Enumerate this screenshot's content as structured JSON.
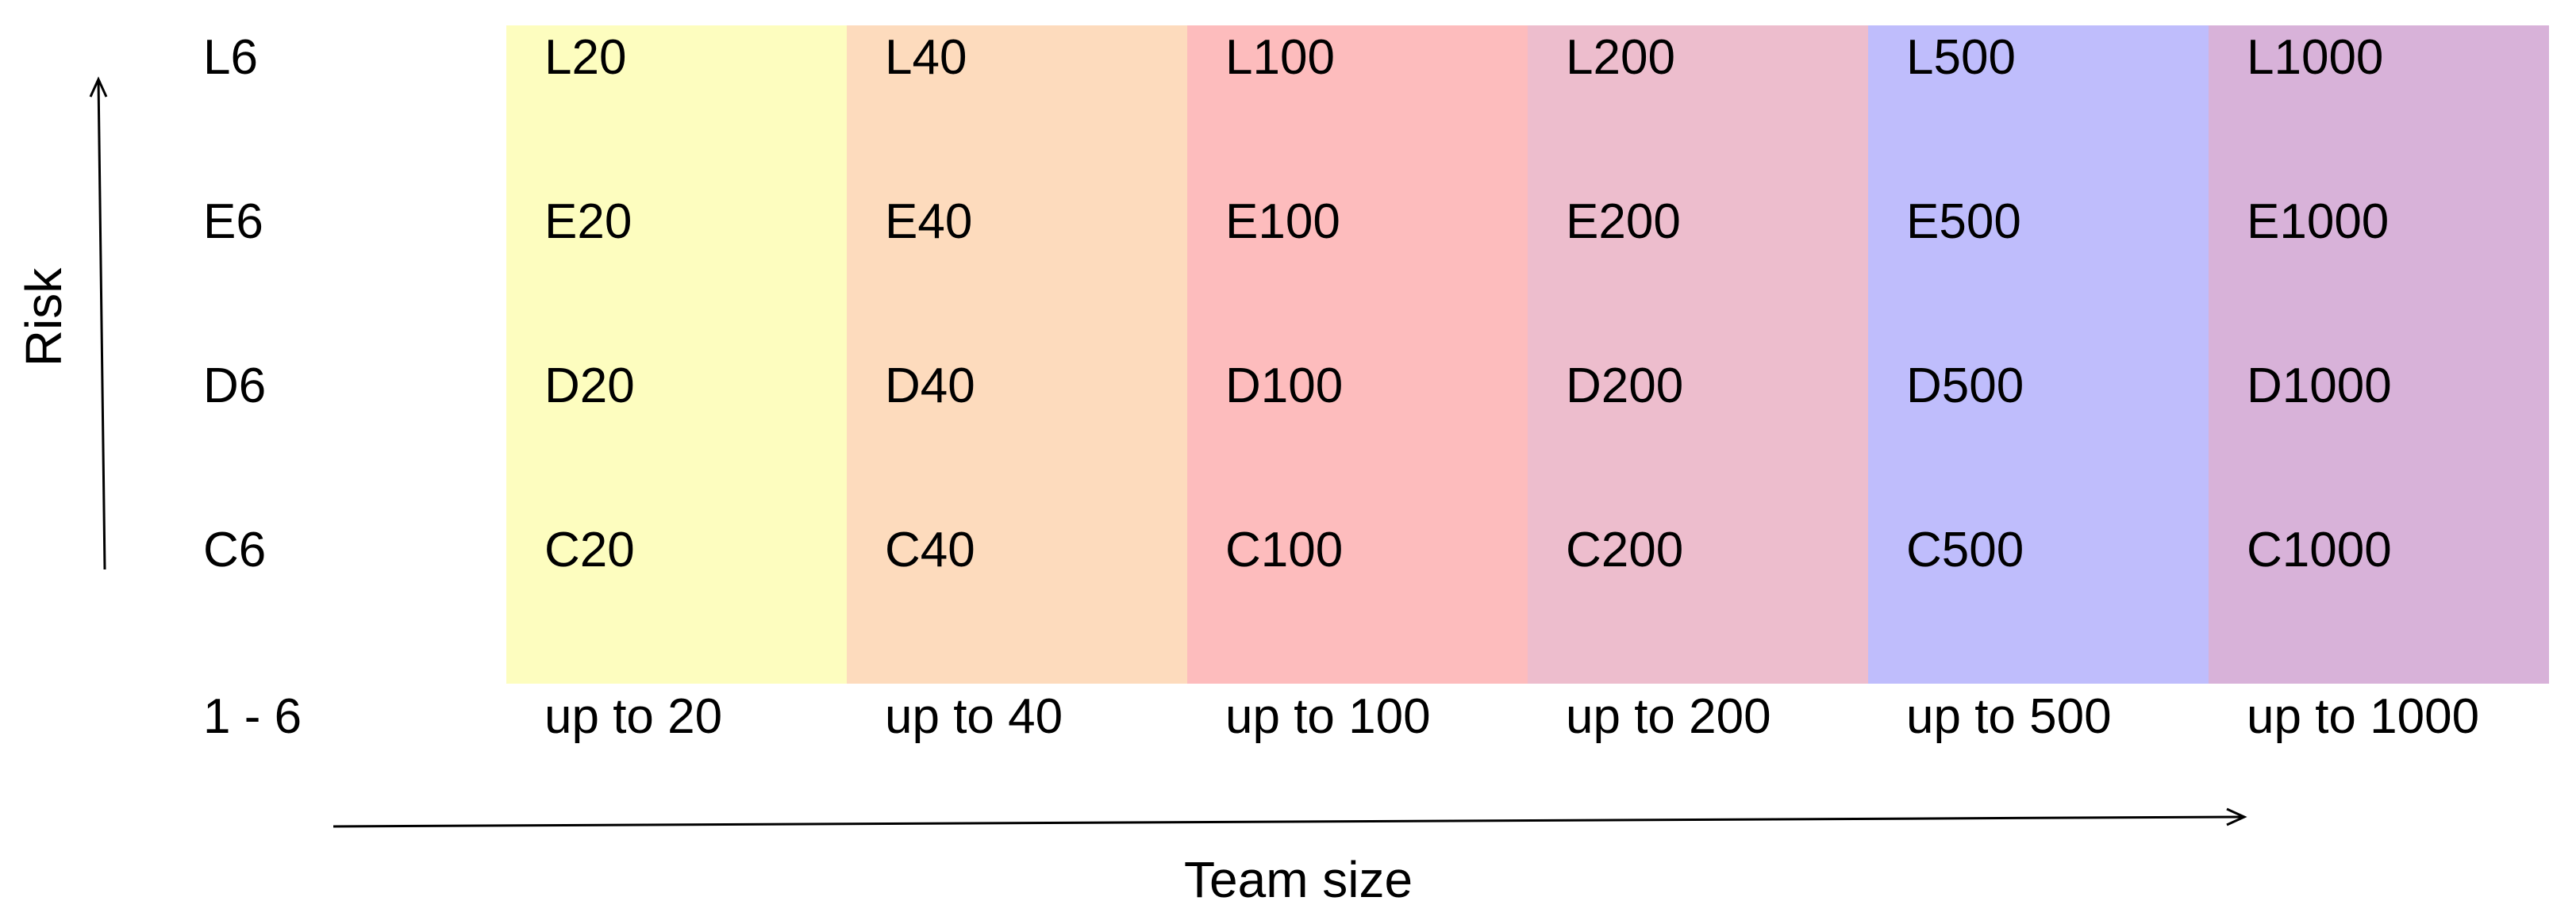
{
  "diagram": {
    "row_labels": [
      "L6",
      "E6",
      "D6",
      "C6"
    ],
    "base_row_label": "1 - 6",
    "columns": [
      {
        "range_label": "up to 20",
        "color": "#fdfdbf",
        "cells": [
          "L20",
          "E20",
          "D20",
          "C20"
        ]
      },
      {
        "range_label": "up to 40",
        "color": "#fddbbd",
        "cells": [
          "L40",
          "E40",
          "D40",
          "C40"
        ]
      },
      {
        "range_label": "up to 100",
        "color": "#fdbcbd",
        "cells": [
          "L100",
          "E100",
          "D100",
          "C100"
        ]
      },
      {
        "range_label": "up to 200",
        "color": "#edbdcd",
        "cells": [
          "L200",
          "E200",
          "D200",
          "C200"
        ]
      },
      {
        "range_label": "up to 500",
        "color": "#bfbdfc",
        "cells": [
          "L500",
          "E500",
          "D500",
          "C500"
        ]
      },
      {
        "range_label": "up to 1000",
        "color": "#d8b2d9",
        "cells": [
          "L1000",
          "E1000",
          "D1000",
          "C1000"
        ]
      }
    ],
    "y_axis_label": "Risk",
    "x_axis_label": "Team size"
  }
}
